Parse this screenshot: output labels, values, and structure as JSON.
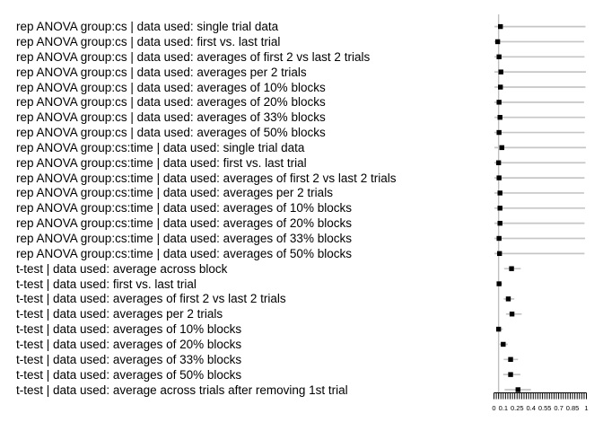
{
  "chart_data": {
    "type": "scatter",
    "subtype": "dot-plot-with-horizontal-error-bars",
    "title": "",
    "xlabel": "",
    "ylabel": "",
    "xlim": [
      0,
      1
    ],
    "x_tick_step": 0.025,
    "x_tick_labels": [
      {
        "v": 0,
        "t": "0"
      },
      {
        "v": 0.1,
        "t": "0.1"
      },
      {
        "v": 0.25,
        "t": "0.25"
      },
      {
        "v": 0.4,
        "t": "0.4"
      },
      {
        "v": 0.55,
        "t": "0.55"
      },
      {
        "v": 0.7,
        "t": "0.7"
      },
      {
        "v": 0.85,
        "t": "0.85"
      },
      {
        "v": 1,
        "t": "1"
      }
    ],
    "reference_line_x": 0.05,
    "grid": false,
    "legend": "none",
    "rows": [
      {
        "label": "rep ANOVA group:cs | data used: single trial data",
        "value": 0.07,
        "lo": 0.005,
        "hi": 0.99
      },
      {
        "label": "rep ANOVA group:cs | data used: first vs. last trial",
        "value": 0.04,
        "lo": 0.005,
        "hi": 0.975
      },
      {
        "label": "rep ANOVA group:cs | data used: averages of first 2 vs last 2 trials",
        "value": 0.055,
        "lo": 0.005,
        "hi": 0.98
      },
      {
        "label": "rep ANOVA group:cs | data used: averages per 2 trials",
        "value": 0.075,
        "lo": 0.005,
        "hi": 0.995
      },
      {
        "label": "rep ANOVA group:cs | data used: averages of 10% blocks",
        "value": 0.07,
        "lo": 0.005,
        "hi": 0.99
      },
      {
        "label": "rep ANOVA group:cs | data used: averages of 20% blocks",
        "value": 0.055,
        "lo": 0.005,
        "hi": 0.975
      },
      {
        "label": "rep ANOVA group:cs | data used: averages of 33% blocks",
        "value": 0.065,
        "lo": 0.005,
        "hi": 0.985
      },
      {
        "label": "rep ANOVA group:cs | data used: averages of 50% blocks",
        "value": 0.055,
        "lo": 0.005,
        "hi": 0.98
      },
      {
        "label": "rep ANOVA group:cs:time | data used: single trial data",
        "value": 0.085,
        "lo": 0.005,
        "hi": 0.995
      },
      {
        "label": "rep ANOVA group:cs:time | data used: first vs. last trial",
        "value": 0.05,
        "lo": 0.005,
        "hi": 0.99
      },
      {
        "label": "rep ANOVA group:cs:time | data used: averages of first 2 vs last 2 trials",
        "value": 0.055,
        "lo": 0.005,
        "hi": 0.98
      },
      {
        "label": "rep ANOVA group:cs:time | data used: averages per 2 trials",
        "value": 0.065,
        "lo": 0.005,
        "hi": 0.975
      },
      {
        "label": "rep ANOVA group:cs:time | data used: averages of 10% blocks",
        "value": 0.065,
        "lo": 0.005,
        "hi": 0.985
      },
      {
        "label": "rep ANOVA group:cs:time | data used: averages of 20% blocks",
        "value": 0.065,
        "lo": 0.005,
        "hi": 0.98
      },
      {
        "label": "rep ANOVA group:cs:time | data used: averages of 33% blocks",
        "value": 0.055,
        "lo": 0.005,
        "hi": 0.985
      },
      {
        "label": "rep ANOVA group:cs:time | data used: averages of 50% blocks",
        "value": 0.06,
        "lo": 0.005,
        "hi": 0.98
      },
      {
        "label": "t-test | data used: average across block",
        "value": 0.19,
        "lo": 0.11,
        "hi": 0.29
      },
      {
        "label": "t-test | data used: first vs. last trial",
        "value": 0.055,
        "lo": 0.035,
        "hi": 0.09
      },
      {
        "label": "t-test | data used: averages of first 2 vs last 2 trials",
        "value": 0.155,
        "lo": 0.105,
        "hi": 0.22
      },
      {
        "label": "t-test | data used: averages per 2 trials",
        "value": 0.195,
        "lo": 0.13,
        "hi": 0.3
      },
      {
        "label": "t-test | data used: averages of 10% blocks",
        "value": 0.05,
        "lo": 0.03,
        "hi": 0.095
      },
      {
        "label": "t-test | data used: averages of 20% blocks",
        "value": 0.1,
        "lo": 0.06,
        "hi": 0.15
      },
      {
        "label": "t-test | data used: averages of 33% blocks",
        "value": 0.18,
        "lo": 0.105,
        "hi": 0.26
      },
      {
        "label": "t-test | data used: averages of 50% blocks",
        "value": 0.18,
        "lo": 0.1,
        "hi": 0.285
      },
      {
        "label": "t-test | data used: average across trials after removing 1st trial",
        "value": 0.26,
        "lo": 0.115,
        "hi": 0.4
      }
    ]
  },
  "colors": {
    "background": "#ffffff",
    "point": "#000000",
    "whisker": "#c6c6c6",
    "reference_line": "#c0c0c0",
    "axis": "#000000",
    "text": "#000000"
  }
}
